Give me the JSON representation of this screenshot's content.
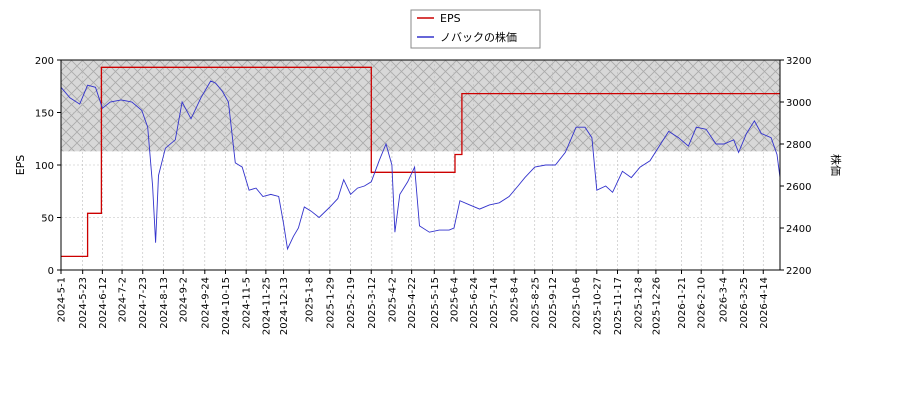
{
  "chart_data": {
    "type": "line",
    "legend": {
      "placement": "top-center",
      "entries": [
        {
          "name": "EPS",
          "color": "#cc0000"
        },
        {
          "name": "ノバックの株価",
          "color": "#3333cc"
        }
      ]
    },
    "y_left": {
      "label": "EPS",
      "range": [
        0,
        200
      ],
      "ticks": [
        0,
        50,
        100,
        150,
        200
      ]
    },
    "y_right": {
      "label": "株価",
      "range": [
        2200,
        3200
      ],
      "ticks": [
        2200,
        2400,
        2600,
        2800,
        3000,
        3200
      ]
    },
    "x_range": [
      "2024-05-01",
      "2026-05-01"
    ],
    "x_tick_labels": [
      "2024-5-1",
      "2024-5-23",
      "2024-6-12",
      "2024-7-2",
      "2024-7-23",
      "2024-8-13",
      "2024-9-2",
      "2024-9-24",
      "2024-10-15",
      "2024-11-5",
      "2024-11-25",
      "2024-12-13",
      "2025-1-8",
      "2025-1-29",
      "2025-2-19",
      "2025-3-12",
      "2025-4-2",
      "2025-4-22",
      "2025-5-15",
      "2025-6-4",
      "2025-6-24",
      "2025-7-14",
      "2025-8-4",
      "2025-8-25",
      "2025-9-12",
      "2025-10-6",
      "2025-10-27",
      "2025-11-17",
      "2025-12-8",
      "2025-12-26",
      "2026-1-21",
      "2026-2-10",
      "2026-3-4",
      "2026-3-25",
      "2026-4-14"
    ],
    "hatch_band": {
      "axis": "y_left",
      "range": [
        113,
        200
      ],
      "pattern": "crosshatch"
    },
    "grid": true,
    "series": [
      {
        "name": "EPS",
        "axis": "left",
        "step": true,
        "color": "#cc0000",
        "points": [
          [
            "2024-05-01",
            13
          ],
          [
            "2024-05-28",
            13
          ],
          [
            "2024-05-28",
            54
          ],
          [
            "2024-06-11",
            54
          ],
          [
            "2024-06-11",
            193
          ],
          [
            "2025-03-12",
            193
          ],
          [
            "2025-03-12",
            93
          ],
          [
            "2025-06-05",
            93
          ],
          [
            "2025-06-05",
            110
          ],
          [
            "2025-06-12",
            110
          ],
          [
            "2025-06-12",
            168
          ],
          [
            "2026-05-01",
            168
          ]
        ]
      },
      {
        "name": "ノバックの株価",
        "axis": "right",
        "color": "#3333cc",
        "points": [
          [
            "2024-05-01",
            3070
          ],
          [
            "2024-05-10",
            3020
          ],
          [
            "2024-05-20",
            2990
          ],
          [
            "2024-05-28",
            3080
          ],
          [
            "2024-06-05",
            3070
          ],
          [
            "2024-06-12",
            2970
          ],
          [
            "2024-06-20",
            3000
          ],
          [
            "2024-07-01",
            3010
          ],
          [
            "2024-07-12",
            3000
          ],
          [
            "2024-07-22",
            2960
          ],
          [
            "2024-07-28",
            2880
          ],
          [
            "2024-08-02",
            2600
          ],
          [
            "2024-08-05",
            2330
          ],
          [
            "2024-08-08",
            2650
          ],
          [
            "2024-08-15",
            2780
          ],
          [
            "2024-08-25",
            2820
          ],
          [
            "2024-09-01",
            3000
          ],
          [
            "2024-09-10",
            2920
          ],
          [
            "2024-09-20",
            3020
          ],
          [
            "2024-09-30",
            3100
          ],
          [
            "2024-10-05",
            3090
          ],
          [
            "2024-10-12",
            3050
          ],
          [
            "2024-10-18",
            3000
          ],
          [
            "2024-10-25",
            2710
          ],
          [
            "2024-11-01",
            2690
          ],
          [
            "2024-11-08",
            2580
          ],
          [
            "2024-11-15",
            2590
          ],
          [
            "2024-11-22",
            2550
          ],
          [
            "2024-11-30",
            2560
          ],
          [
            "2024-12-08",
            2550
          ],
          [
            "2024-12-13",
            2420
          ],
          [
            "2024-12-17",
            2300
          ],
          [
            "2024-12-23",
            2360
          ],
          [
            "2024-12-28",
            2400
          ],
          [
            "2025-01-03",
            2500
          ],
          [
            "2025-01-10",
            2480
          ],
          [
            "2025-01-18",
            2450
          ],
          [
            "2025-01-29",
            2500
          ],
          [
            "2025-02-06",
            2540
          ],
          [
            "2025-02-12",
            2630
          ],
          [
            "2025-02-19",
            2560
          ],
          [
            "2025-02-26",
            2590
          ],
          [
            "2025-03-05",
            2600
          ],
          [
            "2025-03-12",
            2620
          ],
          [
            "2025-03-20",
            2720
          ],
          [
            "2025-03-27",
            2800
          ],
          [
            "2025-04-02",
            2700
          ],
          [
            "2025-04-05",
            2380
          ],
          [
            "2025-04-10",
            2560
          ],
          [
            "2025-04-18",
            2620
          ],
          [
            "2025-04-25",
            2690
          ],
          [
            "2025-04-30",
            2410
          ],
          [
            "2025-05-10",
            2380
          ],
          [
            "2025-05-20",
            2390
          ],
          [
            "2025-05-30",
            2390
          ],
          [
            "2025-06-04",
            2400
          ],
          [
            "2025-06-10",
            2530
          ],
          [
            "2025-06-20",
            2510
          ],
          [
            "2025-06-30",
            2490
          ],
          [
            "2025-07-10",
            2510
          ],
          [
            "2025-07-20",
            2520
          ],
          [
            "2025-07-30",
            2550
          ],
          [
            "2025-08-08",
            2600
          ],
          [
            "2025-08-15",
            2640
          ],
          [
            "2025-08-25",
            2690
          ],
          [
            "2025-09-05",
            2700
          ],
          [
            "2025-09-15",
            2700
          ],
          [
            "2025-09-25",
            2760
          ],
          [
            "2025-10-06",
            2880
          ],
          [
            "2025-10-15",
            2880
          ],
          [
            "2025-10-22",
            2830
          ],
          [
            "2025-10-27",
            2580
          ],
          [
            "2025-11-05",
            2600
          ],
          [
            "2025-11-12",
            2570
          ],
          [
            "2025-11-22",
            2670
          ],
          [
            "2025-12-01",
            2640
          ],
          [
            "2025-12-10",
            2690
          ],
          [
            "2025-12-20",
            2720
          ],
          [
            "2025-12-28",
            2780
          ],
          [
            "2026-01-08",
            2860
          ],
          [
            "2026-01-18",
            2830
          ],
          [
            "2026-01-28",
            2790
          ],
          [
            "2026-02-05",
            2880
          ],
          [
            "2026-02-15",
            2870
          ],
          [
            "2026-02-25",
            2800
          ],
          [
            "2026-03-05",
            2800
          ],
          [
            "2026-03-15",
            2820
          ],
          [
            "2026-03-20",
            2760
          ],
          [
            "2026-03-28",
            2850
          ],
          [
            "2026-04-05",
            2910
          ],
          [
            "2026-04-12",
            2850
          ],
          [
            "2026-04-22",
            2830
          ],
          [
            "2026-04-28",
            2750
          ],
          [
            "2026-05-01",
            2640
          ]
        ]
      }
    ]
  }
}
